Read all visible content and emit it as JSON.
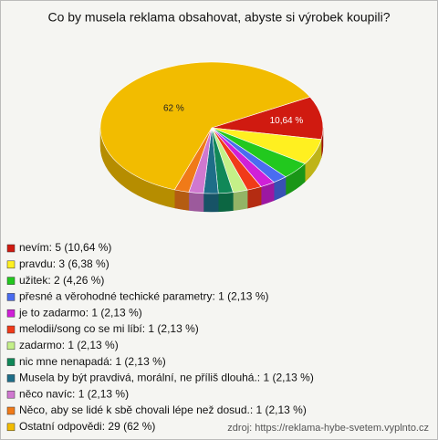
{
  "chart_data": {
    "type": "pie",
    "title": "Co by musela reklama obsahovat, abyste si výrobek koupili?",
    "categories": [
      "nevím: 5 (10,64 %)",
      "pravdu: 3 (6,38 %)",
      "užitek: 2 (4,26 %)",
      "přesné a věrohodné techické parametry: 1 (2,13 %)",
      "je to zadarmo: 1 (2,13 %)",
      "melodii/song co se mi líbí: 1 (2,13 %)",
      "zadarmo: 1 (2,13 %)",
      "nic mne nenapadá: 1 (2,13 %)",
      "Musela by být pravdivá, morální, ne příliš dlouhá.: 1 (2,13 %)",
      "něco navíc: 1 (2,13 %)",
      "Něco, aby se lidé k sbě chovali lépe než dosud.: 1 (2,13 %)",
      "Ostatní odpovědi: 29 (62 %)"
    ],
    "values": [
      10.64,
      6.38,
      4.26,
      2.13,
      2.13,
      2.13,
      2.13,
      2.13,
      2.13,
      2.13,
      2.13,
      62
    ],
    "value_labels": [
      "10,64 %",
      null,
      null,
      null,
      null,
      null,
      null,
      null,
      null,
      null,
      null,
      "62 %"
    ],
    "colors": [
      "#d01a10",
      "#fff020",
      "#22c81e",
      "#4a6cf0",
      "#d020d8",
      "#f03a18",
      "#c4f088",
      "#108858",
      "#1e6e88",
      "#d078d0",
      "#f07a18",
      "#f2bc00"
    ],
    "source": "zdroj: https://reklama-hybe-svetem.vyplnto.cz"
  }
}
